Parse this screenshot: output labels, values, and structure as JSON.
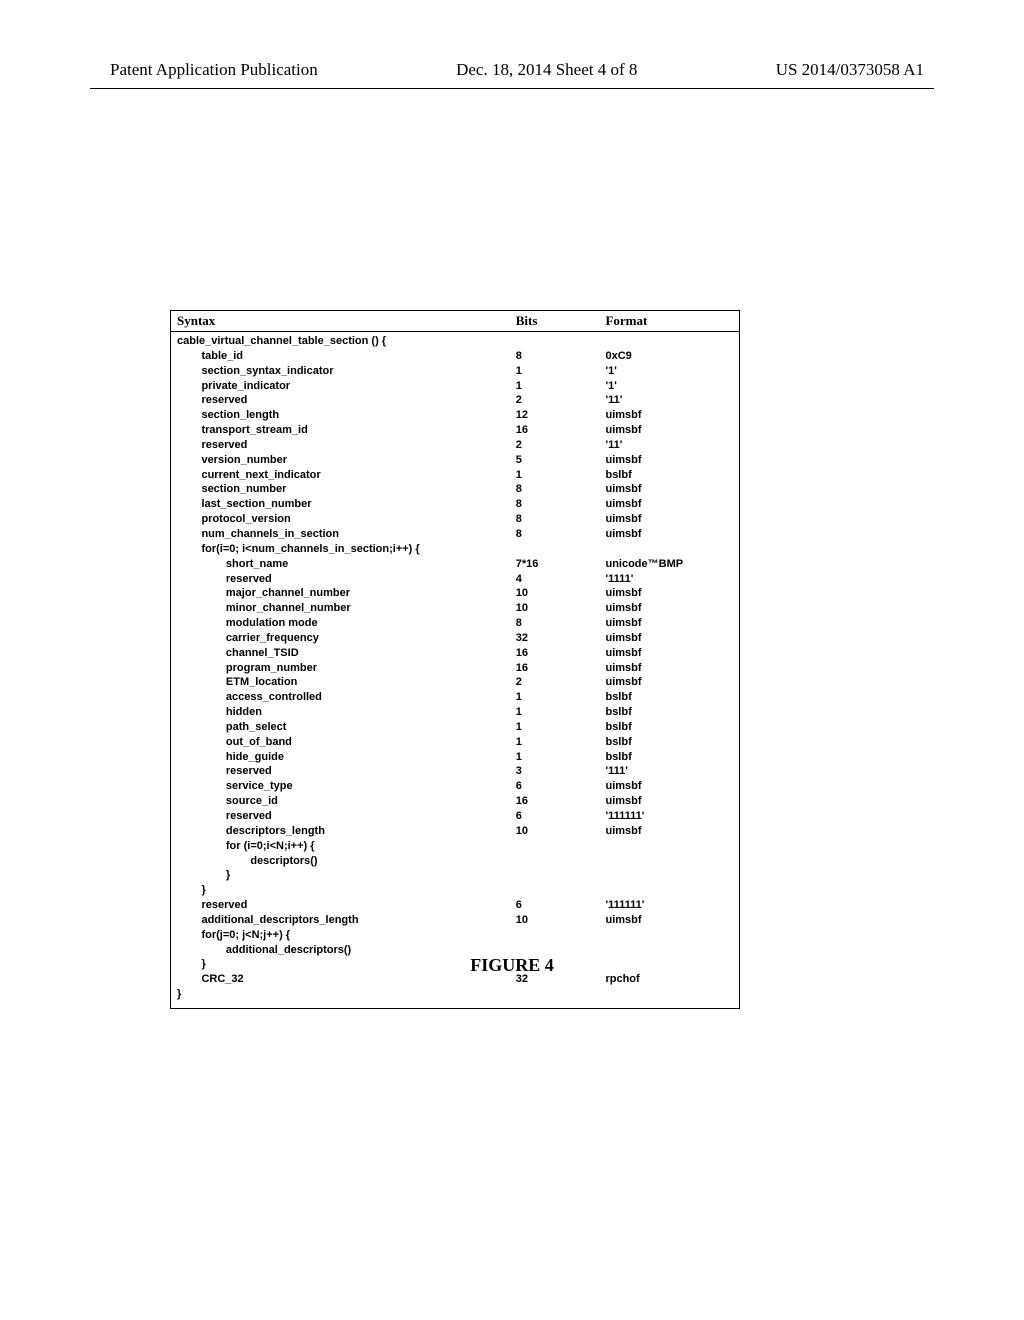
{
  "header": {
    "left": "Patent Application Publication",
    "center": "Dec. 18, 2014  Sheet 4 of 8",
    "right": "US 2014/0373058 A1"
  },
  "table": {
    "columns": [
      "Syntax",
      "Bits",
      "Format"
    ],
    "rows": [
      {
        "s": "cable_virtual_channel_table_section () {",
        "b": "",
        "f": "",
        "i": 0
      },
      {
        "s": "table_id",
        "b": "8",
        "f": "0xC9",
        "i": 1
      },
      {
        "s": "section_syntax_indicator",
        "b": "1",
        "f": "'1'",
        "i": 1
      },
      {
        "s": "private_indicator",
        "b": "1",
        "f": "'1'",
        "i": 1
      },
      {
        "s": "reserved",
        "b": "2",
        "f": "'11'",
        "i": 1
      },
      {
        "s": "section_length",
        "b": "12",
        "f": "uimsbf",
        "i": 1
      },
      {
        "s": "transport_stream_id",
        "b": "16",
        "f": "uimsbf",
        "i": 1
      },
      {
        "s": "reserved",
        "b": "2",
        "f": "'11'",
        "i": 1
      },
      {
        "s": "version_number",
        "b": "5",
        "f": "uimsbf",
        "i": 1
      },
      {
        "s": "current_next_indicator",
        "b": "1",
        "f": "bslbf",
        "i": 1
      },
      {
        "s": "section_number",
        "b": "8",
        "f": "uimsbf",
        "i": 1
      },
      {
        "s": "last_section_number",
        "b": "8",
        "f": "uimsbf",
        "i": 1
      },
      {
        "s": "protocol_version",
        "b": "8",
        "f": "uimsbf",
        "i": 1
      },
      {
        "s": "num_channels_in_section",
        "b": "8",
        "f": "uimsbf",
        "i": 1
      },
      {
        "s": "for(i=0; i<num_channels_in_section;i++) {",
        "b": "",
        "f": "",
        "i": 1
      },
      {
        "s": "short_name",
        "b": "7*16",
        "f": "unicode™BMP",
        "i": 2
      },
      {
        "s": "reserved",
        "b": "4",
        "f": "'1111'",
        "i": 2
      },
      {
        "s": "major_channel_number",
        "b": "10",
        "f": "uimsbf",
        "i": 2
      },
      {
        "s": "minor_channel_number",
        "b": "10",
        "f": "uimsbf",
        "i": 2
      },
      {
        "s": "modulation mode",
        "b": "8",
        "f": "uimsbf",
        "i": 2
      },
      {
        "s": "carrier_frequency",
        "b": "32",
        "f": "uimsbf",
        "i": 2
      },
      {
        "s": "channel_TSID",
        "b": "16",
        "f": "uimsbf",
        "i": 2
      },
      {
        "s": "program_number",
        "b": "16",
        "f": "uimsbf",
        "i": 2
      },
      {
        "s": "ETM_location",
        "b": "2",
        "f": "uimsbf",
        "i": 2
      },
      {
        "s": "access_controlled",
        "b": "1",
        "f": "bslbf",
        "i": 2
      },
      {
        "s": "hidden",
        "b": "1",
        "f": "bslbf",
        "i": 2
      },
      {
        "s": "path_select",
        "b": "1",
        "f": "bslbf",
        "i": 2
      },
      {
        "s": "out_of_band",
        "b": "1",
        "f": "bslbf",
        "i": 2
      },
      {
        "s": "hide_guide",
        "b": "1",
        "f": "bslbf",
        "i": 2
      },
      {
        "s": "reserved",
        "b": "3",
        "f": "'111'",
        "i": 2
      },
      {
        "s": "service_type",
        "b": "6",
        "f": "uimsbf",
        "i": 2
      },
      {
        "s": "source_id",
        "b": "16",
        "f": "uimsbf",
        "i": 2
      },
      {
        "s": "reserved",
        "b": "6",
        "f": "'111111'",
        "i": 2
      },
      {
        "s": "descriptors_length",
        "b": "10",
        "f": "uimsbf",
        "i": 2
      },
      {
        "s": "for (i=0;i<N;i++) {",
        "b": "",
        "f": "",
        "i": 2
      },
      {
        "s": "descriptors()",
        "b": "",
        "f": "",
        "i": 3
      },
      {
        "s": "}",
        "b": "",
        "f": "",
        "i": 2
      },
      {
        "s": "}",
        "b": "",
        "f": "",
        "i": 1
      },
      {
        "s": "reserved",
        "b": "6",
        "f": "'111111'",
        "i": 1
      },
      {
        "s": "additional_descriptors_length",
        "b": "10",
        "f": "uimsbf",
        "i": 1
      },
      {
        "s": "for(j=0; j<N;j++) {",
        "b": "",
        "f": "",
        "i": 1
      },
      {
        "s": "additional_descriptors()",
        "b": "",
        "f": "",
        "i": 2
      },
      {
        "s": "}",
        "b": "",
        "f": "",
        "i": 1
      },
      {
        "s": "CRC_32",
        "b": "32",
        "f": "rpchof",
        "i": 1
      },
      {
        "s": "}",
        "b": "",
        "f": "",
        "i": 0
      }
    ]
  },
  "caption": "FIGURE 4"
}
